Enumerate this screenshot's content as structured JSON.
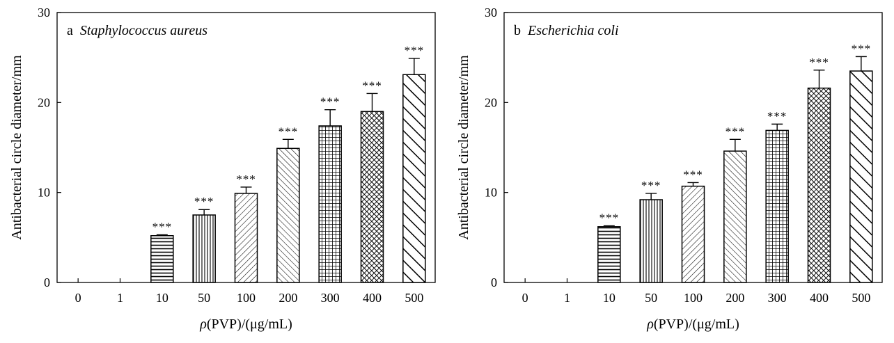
{
  "chart_data": [
    {
      "type": "bar",
      "panel_letter": "a",
      "title": "Staphylococcus aureus",
      "xlabel_prefix": "ρ",
      "xlabel_rest": "(PVP)/(μg/mL)",
      "ylabel": "Antibacterial circle diameter/mm",
      "ylim": [
        0,
        30
      ],
      "yticks": [
        "0",
        "10",
        "20",
        "30"
      ],
      "categories": [
        "0",
        "1",
        "10",
        "50",
        "100",
        "200",
        "300",
        "400",
        "500"
      ],
      "values": [
        0,
        0,
        5.2,
        7.5,
        9.9,
        14.9,
        17.4,
        19.0,
        23.1
      ],
      "errors": [
        0,
        0,
        0.1,
        0.6,
        0.7,
        1.0,
        1.8,
        2.0,
        1.8
      ],
      "significance": [
        "",
        "",
        "***",
        "***",
        "***",
        "***",
        "***",
        "***",
        "***"
      ],
      "patterns": [
        "none",
        "none",
        "hlines",
        "vlines",
        "diag-right",
        "diag-left",
        "grid",
        "crosshatch",
        "diag-left-thick"
      ],
      "grid": false
    },
    {
      "type": "bar",
      "panel_letter": "b",
      "title": "Escherichia coli",
      "xlabel_prefix": "ρ",
      "xlabel_rest": "(PVP)/(μg/mL)",
      "ylabel": "Antibacterial circle diameter/mm",
      "ylim": [
        0,
        30
      ],
      "yticks": [
        "0",
        "10",
        "20",
        "30"
      ],
      "categories": [
        "0",
        "1",
        "10",
        "50",
        "100",
        "200",
        "300",
        "400",
        "500"
      ],
      "values": [
        0,
        0,
        6.2,
        9.2,
        10.7,
        14.6,
        16.9,
        21.6,
        23.5
      ],
      "errors": [
        0,
        0,
        0.1,
        0.7,
        0.4,
        1.3,
        0.7,
        2.0,
        1.6
      ],
      "significance": [
        "",
        "",
        "***",
        "***",
        "***",
        "***",
        "***",
        "***",
        "***"
      ],
      "patterns": [
        "none",
        "none",
        "hlines",
        "vlines",
        "diag-right",
        "diag-left",
        "grid",
        "crosshatch",
        "diag-left-thick"
      ],
      "grid": false
    }
  ]
}
